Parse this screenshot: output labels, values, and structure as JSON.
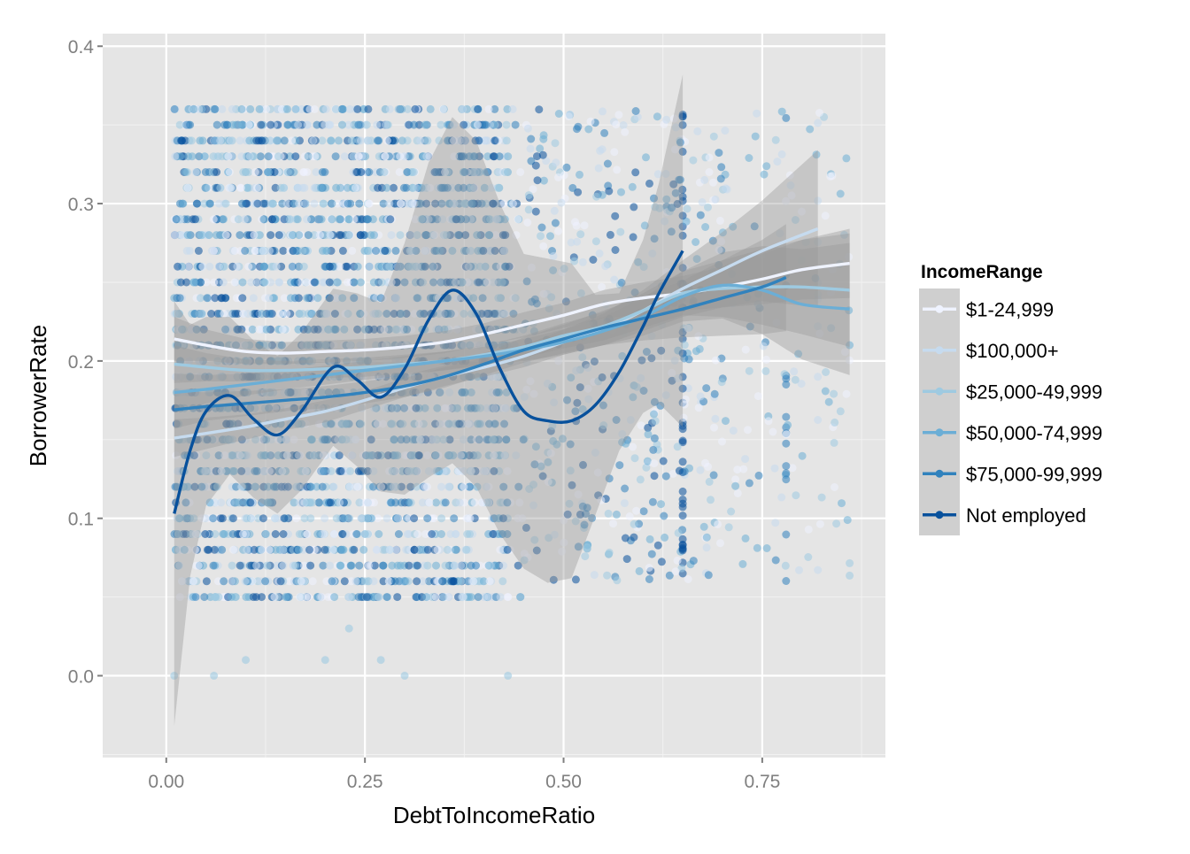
{
  "chart_data": {
    "type": "scatter",
    "title": "",
    "xlabel": "DebtToIncomeRatio",
    "ylabel": "BorrowerRate",
    "xlim": [
      -0.08,
      0.905
    ],
    "ylim": [
      -0.052,
      0.408
    ],
    "x_ticks": [
      0.0,
      0.25,
      0.5,
      0.75
    ],
    "x_tick_labels": [
      "0.00",
      "0.25",
      "0.50",
      "0.75"
    ],
    "y_ticks": [
      0.0,
      0.1,
      0.2,
      0.3,
      0.4
    ],
    "y_tick_labels": [
      "0.0",
      "0.1",
      "0.2",
      "0.3",
      "0.4"
    ],
    "grid": true,
    "legend": {
      "title": "IncomeRange",
      "placement": "right",
      "entries": [
        "$1-24,999",
        "$100,000+",
        "$25,000-49,999",
        "$50,000-74,999",
        "$75,000-99,999",
        "Not employed"
      ]
    },
    "colors": {
      "panel_bg": "#E5E5E5",
      "grid": "#FFFFFF",
      "ribbon": "#999999",
      "$1-24,999": "#EFF3FF",
      "$100,000+": "#C6DBEF",
      "$25,000-49,999": "#9ECAE1",
      "$50,000-74,999": "#6BAED6",
      "$75,000-99,999": "#3182BD",
      "Not employed": "#08519C"
    },
    "series": [
      {
        "name": "$1-24,999",
        "color": "#EFF3FF",
        "x_range": [
          0.01,
          0.86
        ],
        "points_cloud_y": [
          0.05,
          0.36
        ],
        "smooth": {
          "x": [
            0.01,
            0.05,
            0.1,
            0.15,
            0.2,
            0.25,
            0.3,
            0.35,
            0.4,
            0.45,
            0.5,
            0.55,
            0.6,
            0.65,
            0.7,
            0.75,
            0.8,
            0.86
          ],
          "y": [
            0.214,
            0.21,
            0.206,
            0.205,
            0.206,
            0.207,
            0.209,
            0.212,
            0.217,
            0.223,
            0.229,
            0.236,
            0.24,
            0.243,
            0.247,
            0.252,
            0.258,
            0.262
          ]
        },
        "band_halfwidth": [
          0.014,
          0.01,
          0.008,
          0.007,
          0.007,
          0.007,
          0.007,
          0.007,
          0.007,
          0.008,
          0.008,
          0.009,
          0.01,
          0.011,
          0.013,
          0.016,
          0.019,
          0.022
        ]
      },
      {
        "name": "$100,000+",
        "color": "#C6DBEF",
        "x_range": [
          0.01,
          0.82
        ],
        "points_cloud_y": [
          0.05,
          0.35
        ],
        "smooth": {
          "x": [
            0.01,
            0.05,
            0.1,
            0.15,
            0.2,
            0.25,
            0.3,
            0.35,
            0.4,
            0.45,
            0.5,
            0.55,
            0.6,
            0.65,
            0.7,
            0.75,
            0.82
          ],
          "y": [
            0.151,
            0.154,
            0.158,
            0.163,
            0.168,
            0.175,
            0.183,
            0.19,
            0.196,
            0.203,
            0.212,
            0.22,
            0.232,
            0.246,
            0.258,
            0.27,
            0.284
          ]
        },
        "band_halfwidth": [
          0.012,
          0.01,
          0.008,
          0.007,
          0.007,
          0.006,
          0.006,
          0.006,
          0.006,
          0.007,
          0.008,
          0.01,
          0.013,
          0.018,
          0.024,
          0.032,
          0.05
        ]
      },
      {
        "name": "$25,000-49,999",
        "color": "#9ECAE1",
        "x_range": [
          0.01,
          0.86
        ],
        "points_cloud_y": [
          0.05,
          0.36
        ],
        "smooth": {
          "x": [
            0.01,
            0.05,
            0.1,
            0.15,
            0.2,
            0.25,
            0.3,
            0.35,
            0.4,
            0.45,
            0.5,
            0.55,
            0.6,
            0.65,
            0.7,
            0.75,
            0.8,
            0.86
          ],
          "y": [
            0.198,
            0.196,
            0.194,
            0.194,
            0.195,
            0.196,
            0.198,
            0.2,
            0.204,
            0.209,
            0.216,
            0.222,
            0.232,
            0.243,
            0.246,
            0.247,
            0.247,
            0.245
          ]
        },
        "band_halfwidth": [
          0.012,
          0.009,
          0.007,
          0.006,
          0.006,
          0.006,
          0.006,
          0.006,
          0.006,
          0.007,
          0.008,
          0.009,
          0.011,
          0.014,
          0.018,
          0.024,
          0.03,
          0.036
        ]
      },
      {
        "name": "$50,000-74,999",
        "color": "#6BAED6",
        "x_range": [
          0.01,
          0.86
        ],
        "points_cloud_y": [
          0.05,
          0.36
        ],
        "smooth": {
          "x": [
            0.01,
            0.05,
            0.1,
            0.15,
            0.2,
            0.25,
            0.3,
            0.35,
            0.4,
            0.45,
            0.5,
            0.55,
            0.6,
            0.65,
            0.7,
            0.75,
            0.8,
            0.86
          ],
          "y": [
            0.18,
            0.182,
            0.185,
            0.188,
            0.191,
            0.194,
            0.197,
            0.2,
            0.203,
            0.207,
            0.212,
            0.219,
            0.228,
            0.241,
            0.248,
            0.245,
            0.236,
            0.233
          ]
        },
        "band_halfwidth": [
          0.012,
          0.009,
          0.007,
          0.006,
          0.006,
          0.006,
          0.006,
          0.006,
          0.006,
          0.007,
          0.008,
          0.009,
          0.012,
          0.016,
          0.021,
          0.028,
          0.035,
          0.042
        ]
      },
      {
        "name": "$75,000-99,999",
        "color": "#3182BD",
        "x_range": [
          0.01,
          0.78
        ],
        "points_cloud_y": [
          0.05,
          0.35
        ],
        "smooth": {
          "x": [
            0.01,
            0.05,
            0.1,
            0.15,
            0.2,
            0.25,
            0.3,
            0.35,
            0.4,
            0.45,
            0.5,
            0.55,
            0.6,
            0.65,
            0.7,
            0.75,
            0.78
          ],
          "y": [
            0.169,
            0.171,
            0.173,
            0.175,
            0.177,
            0.18,
            0.184,
            0.19,
            0.198,
            0.207,
            0.214,
            0.221,
            0.227,
            0.233,
            0.24,
            0.247,
            0.253
          ]
        },
        "band_halfwidth": [
          0.012,
          0.009,
          0.008,
          0.007,
          0.007,
          0.007,
          0.007,
          0.007,
          0.007,
          0.008,
          0.009,
          0.011,
          0.014,
          0.018,
          0.024,
          0.03,
          0.034
        ]
      },
      {
        "name": "Not employed",
        "color": "#08519C",
        "x_range": [
          0.01,
          0.65
        ],
        "points_cloud_y": [
          0.0,
          0.36
        ],
        "smooth": {
          "x": [
            0.01,
            0.03,
            0.05,
            0.08,
            0.11,
            0.14,
            0.17,
            0.21,
            0.24,
            0.27,
            0.3,
            0.33,
            0.36,
            0.39,
            0.42,
            0.45,
            0.48,
            0.51,
            0.54,
            0.57,
            0.6,
            0.62,
            0.65
          ],
          "y": [
            0.103,
            0.143,
            0.168,
            0.178,
            0.163,
            0.153,
            0.168,
            0.196,
            0.188,
            0.177,
            0.195,
            0.226,
            0.245,
            0.23,
            0.195,
            0.168,
            0.162,
            0.162,
            0.172,
            0.193,
            0.222,
            0.243,
            0.27
          ]
        },
        "band_halfwidth": [
          0.135,
          0.08,
          0.06,
          0.05,
          0.05,
          0.05,
          0.05,
          0.05,
          0.055,
          0.06,
          0.08,
          0.1,
          0.11,
          0.11,
          0.105,
          0.1,
          0.103,
          0.1,
          0.07,
          0.05,
          0.055,
          0.07,
          0.112
        ]
      }
    ]
  }
}
